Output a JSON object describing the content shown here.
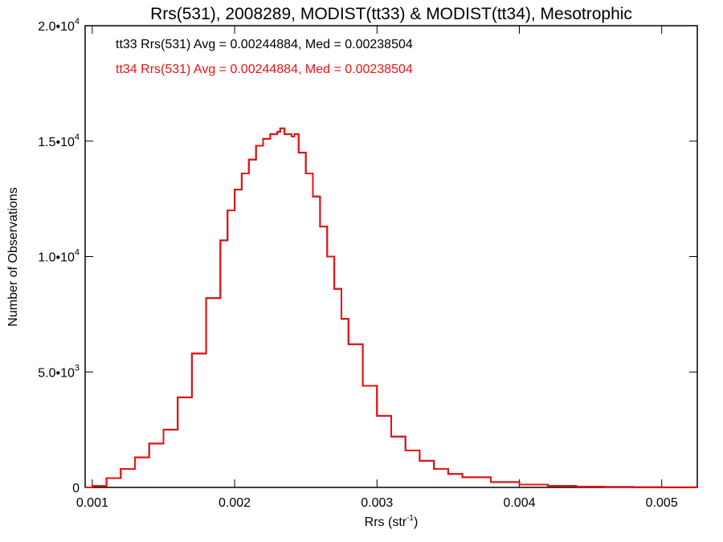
{
  "chart_data": {
    "type": "line",
    "title": "Rrs(531), 2008289, MODIST(tt33) & MODIST(tt34), Mesotrophic",
    "xlabel": "Rrs (str",
    "xlabel_sup": "-1",
    "xlabel_close": ")",
    "ylabel": "Number of Observations",
    "xlim": [
      0.00095,
      0.00525
    ],
    "ylim": [
      0,
      20000
    ],
    "x_ticks": [
      {
        "value": 0.001,
        "label": "0.001"
      },
      {
        "value": 0.002,
        "label": "0.002"
      },
      {
        "value": 0.003,
        "label": "0.003"
      },
      {
        "value": 0.004,
        "label": "0.004"
      },
      {
        "value": 0.005,
        "label": "0.005"
      }
    ],
    "y_ticks": [
      {
        "value": 0,
        "label": "0",
        "exp": ""
      },
      {
        "value": 5000,
        "label": "5.0•10",
        "exp": "3"
      },
      {
        "value": 10000,
        "label": "1.0•10",
        "exp": "4"
      },
      {
        "value": 15000,
        "label": "1.5•10",
        "exp": "4"
      },
      {
        "value": 20000,
        "label": "2.0•10",
        "exp": "4"
      }
    ],
    "legend_placement": "top-left",
    "annotations": [
      {
        "text": "tt33 Rrs(531) Avg = 0.00244884, Med = 0.00238504",
        "color": "#000000"
      },
      {
        "text": "tt34 Rrs(531) Avg = 0.00244884, Med = 0.00238504",
        "color": "#ee1111"
      }
    ],
    "series": [
      {
        "color": "#000000",
        "x": [
          0.00095,
          0.001,
          0.0011,
          0.0012,
          0.0013,
          0.0014,
          0.0015,
          0.0016,
          0.0017,
          0.0018,
          0.0019,
          0.00195,
          0.002,
          0.00205,
          0.0021,
          0.00215,
          0.0022,
          0.00225,
          0.0023,
          0.00232,
          0.00235,
          0.0024,
          0.00242,
          0.00245,
          0.0025,
          0.00255,
          0.0026,
          0.00265,
          0.0027,
          0.00275,
          0.0028,
          0.0029,
          0.003,
          0.0031,
          0.0032,
          0.0033,
          0.0034,
          0.0035,
          0.0036,
          0.0038,
          0.004,
          0.0042,
          0.0044,
          0.0046,
          0.0048,
          0.005,
          0.00525
        ],
        "y": [
          0,
          60,
          400,
          800,
          1300,
          1900,
          2500,
          3900,
          5800,
          8200,
          10700,
          12000,
          12900,
          13600,
          14200,
          14800,
          15100,
          15300,
          15400,
          15550,
          15300,
          15200,
          15300,
          14500,
          13600,
          12600,
          11300,
          10000,
          8600,
          7300,
          6200,
          4400,
          3100,
          2200,
          1600,
          1150,
          800,
          580,
          440,
          230,
          120,
          65,
          35,
          20,
          10,
          5,
          0
        ]
      },
      {
        "color": "#ee1111",
        "x": [
          0.00095,
          0.001,
          0.0011,
          0.0012,
          0.0013,
          0.0014,
          0.0015,
          0.0016,
          0.0017,
          0.0018,
          0.0019,
          0.00195,
          0.002,
          0.00205,
          0.0021,
          0.00215,
          0.0022,
          0.00225,
          0.0023,
          0.00232,
          0.00235,
          0.0024,
          0.00242,
          0.00245,
          0.0025,
          0.00255,
          0.0026,
          0.00265,
          0.0027,
          0.00275,
          0.0028,
          0.0029,
          0.003,
          0.0031,
          0.0032,
          0.0033,
          0.0034,
          0.0035,
          0.0036,
          0.0038,
          0.004,
          0.0042,
          0.0044,
          0.0046,
          0.0048,
          0.005,
          0.00525
        ],
        "y": [
          0,
          60,
          400,
          800,
          1300,
          1900,
          2500,
          3900,
          5800,
          8200,
          10700,
          12000,
          12900,
          13600,
          14200,
          14800,
          15100,
          15300,
          15400,
          15550,
          15300,
          15200,
          15300,
          14500,
          13600,
          12600,
          11300,
          10000,
          8600,
          7300,
          6200,
          4400,
          3100,
          2200,
          1600,
          1150,
          800,
          580,
          440,
          230,
          120,
          65,
          35,
          20,
          10,
          5,
          0
        ]
      }
    ]
  }
}
